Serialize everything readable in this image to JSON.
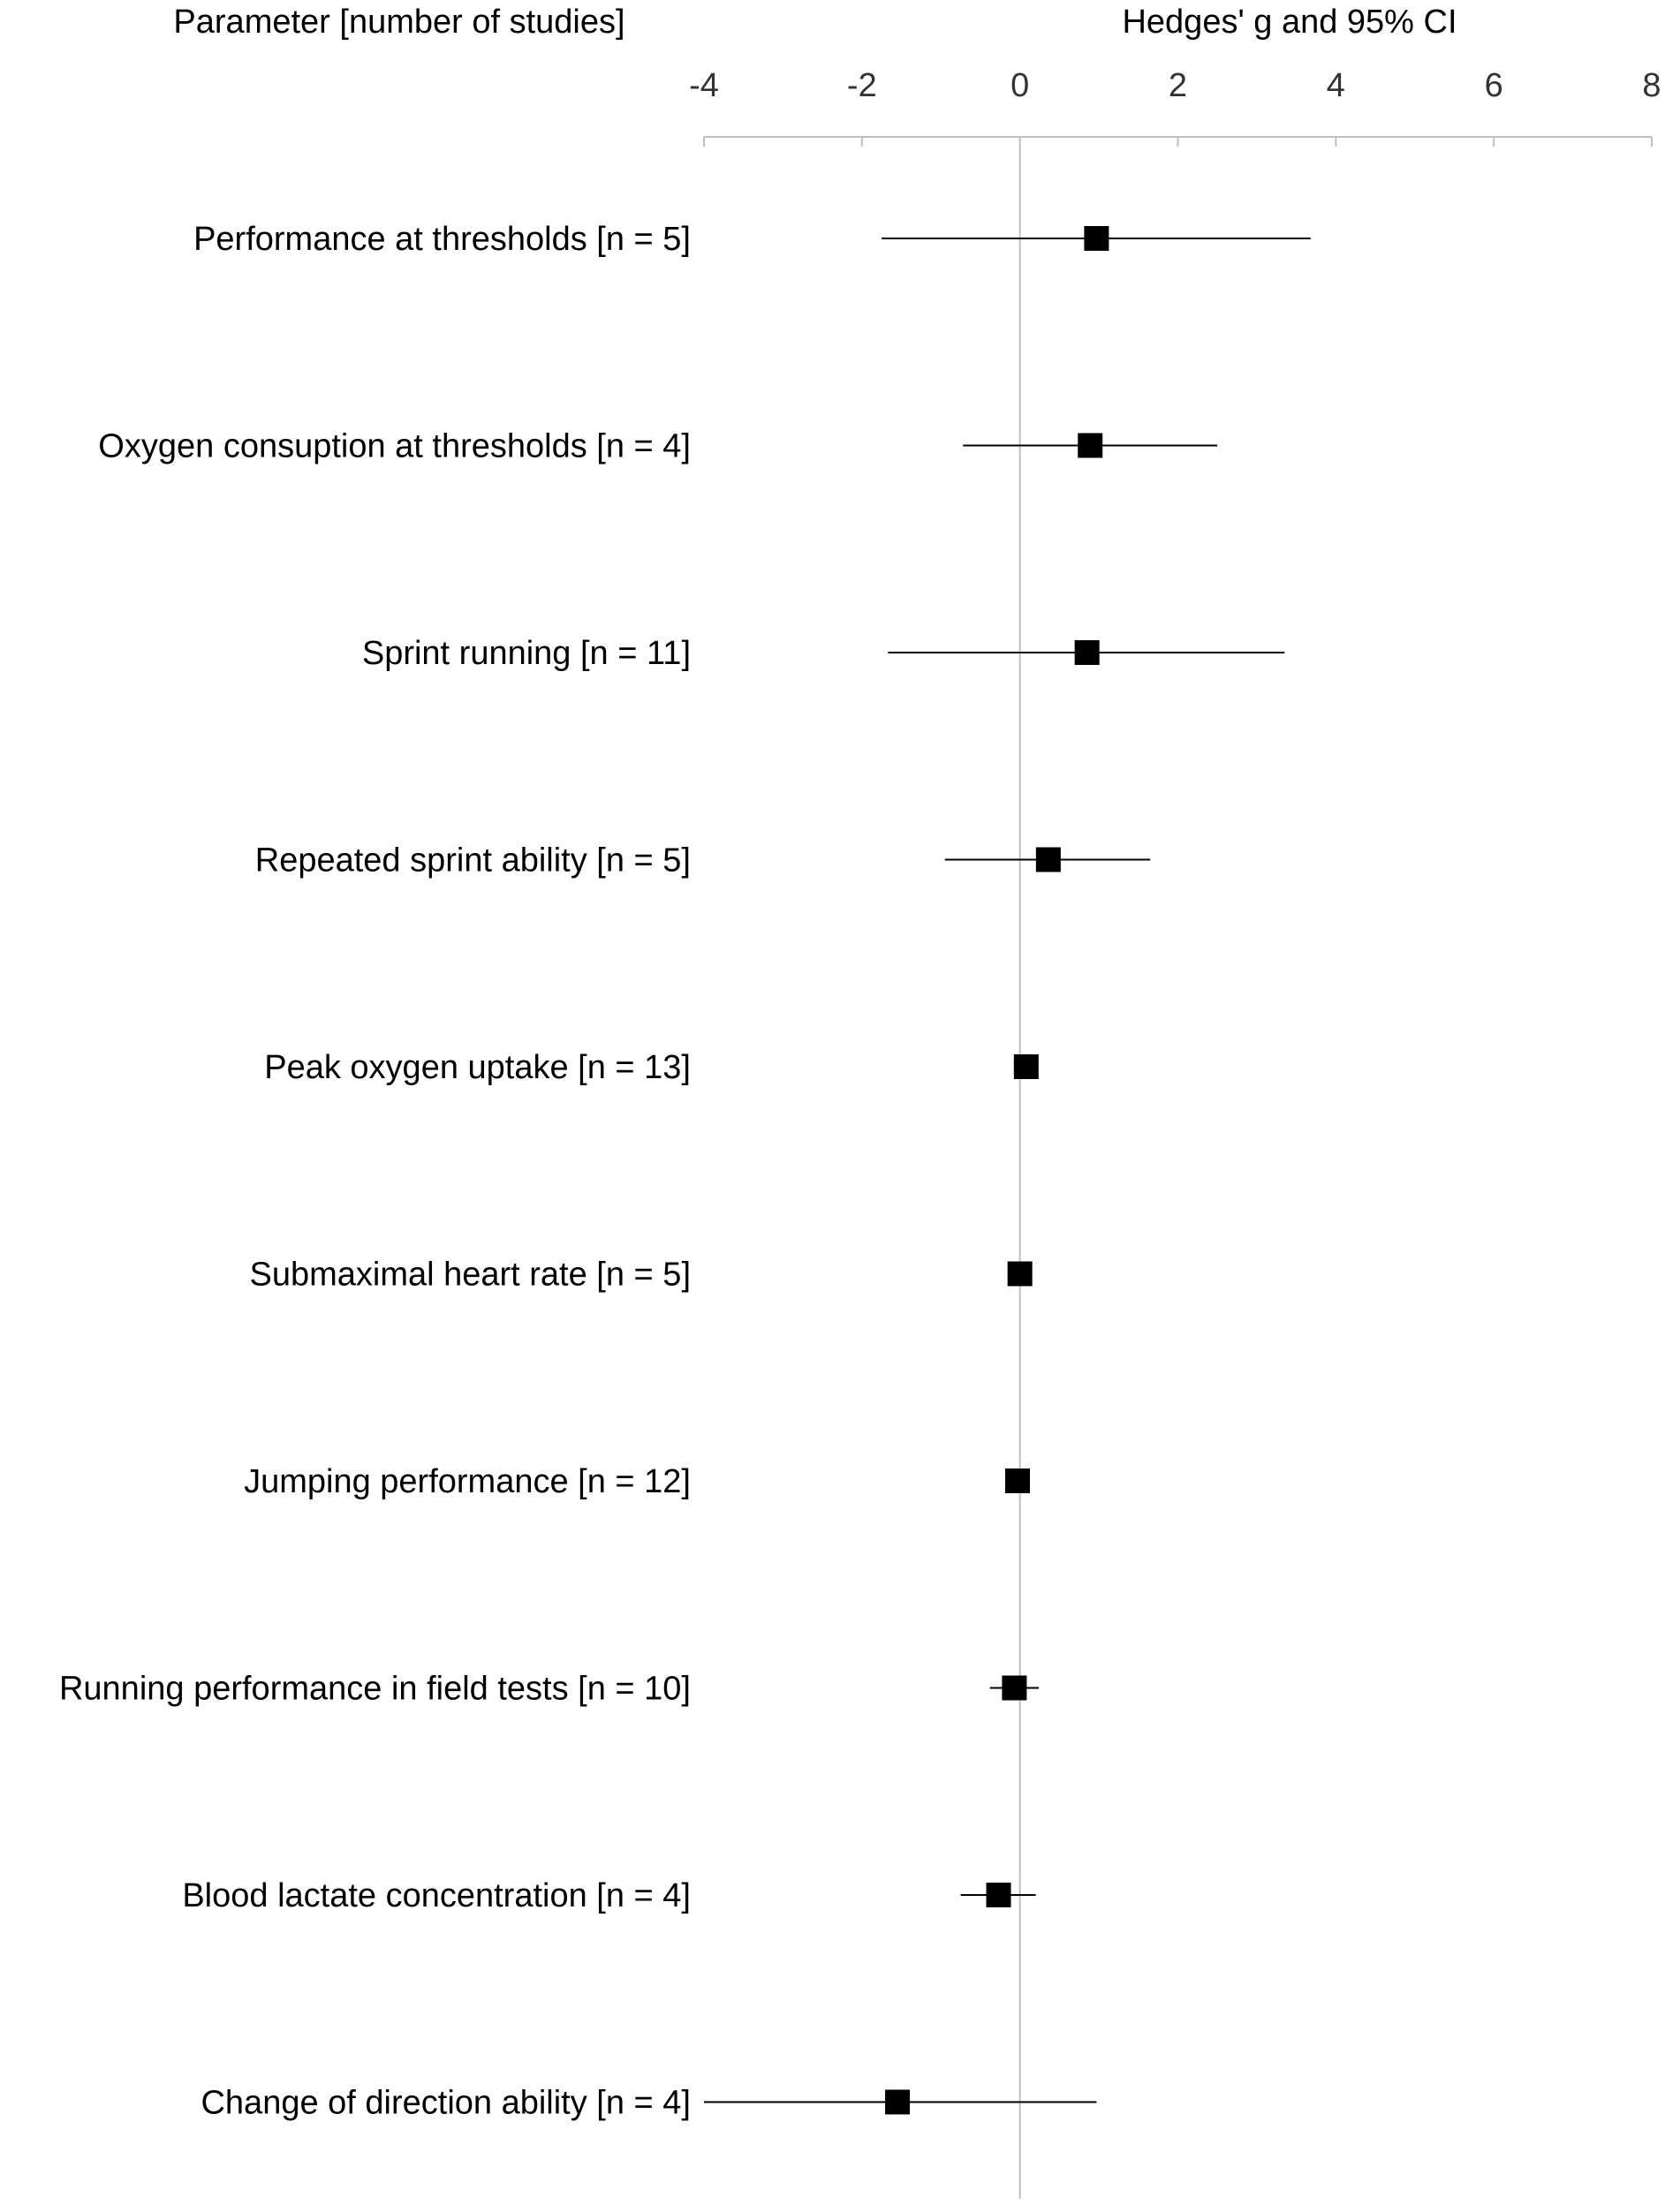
{
  "chart_data": {
    "type": "forest",
    "left_header": "Parameter [number of studies]",
    "right_header": "Hedges' g and 95% CI",
    "xlim": [
      -4,
      8
    ],
    "x_ticks": [
      -4,
      -2,
      0,
      2,
      4,
      6,
      8
    ],
    "x_tick_labels": [
      "-4",
      "-2",
      "0",
      "2",
      "4",
      "6",
      "8"
    ],
    "reference_line": 0,
    "rows": [
      {
        "label": "Performance at thresholds [n = 5]",
        "g": 0.97,
        "ci": [
          -1.75,
          3.68
        ]
      },
      {
        "label": "Oxygen consuption at thresholds [n = 4]",
        "g": 0.89,
        "ci": [
          -0.72,
          2.5
        ]
      },
      {
        "label": "Sprint running [n = 11]",
        "g": 0.85,
        "ci": [
          -1.67,
          3.35
        ]
      },
      {
        "label": "Repeated sprint ability [n = 5]",
        "g": 0.36,
        "ci": [
          -0.95,
          1.65
        ]
      },
      {
        "label": "Peak oxygen uptake [n = 13]",
        "g": 0.08,
        "ci": [
          -0.05,
          0.21
        ]
      },
      {
        "label": "Submaximal heart rate [n = 5]",
        "g": 0.0,
        "ci": [
          -0.1,
          0.1
        ]
      },
      {
        "label": "Jumping performance [n = 12]",
        "g": -0.03,
        "ci": [
          -0.12,
          0.07
        ]
      },
      {
        "label": "Running performance in field tests [n = 10]",
        "g": -0.07,
        "ci": [
          -0.38,
          0.24
        ]
      },
      {
        "label": "Blood lactate concentration [n = 4]",
        "g": -0.27,
        "ci": [
          -0.75,
          0.2
        ]
      },
      {
        "label": "Change of direction ability [n = 4]",
        "g": -1.55,
        "ci": [
          -4.0,
          0.97
        ]
      }
    ],
    "colors": {
      "marker": "#000000",
      "axis": "#c0c0c0",
      "text": "#000000",
      "tick_text": "#333333"
    }
  }
}
